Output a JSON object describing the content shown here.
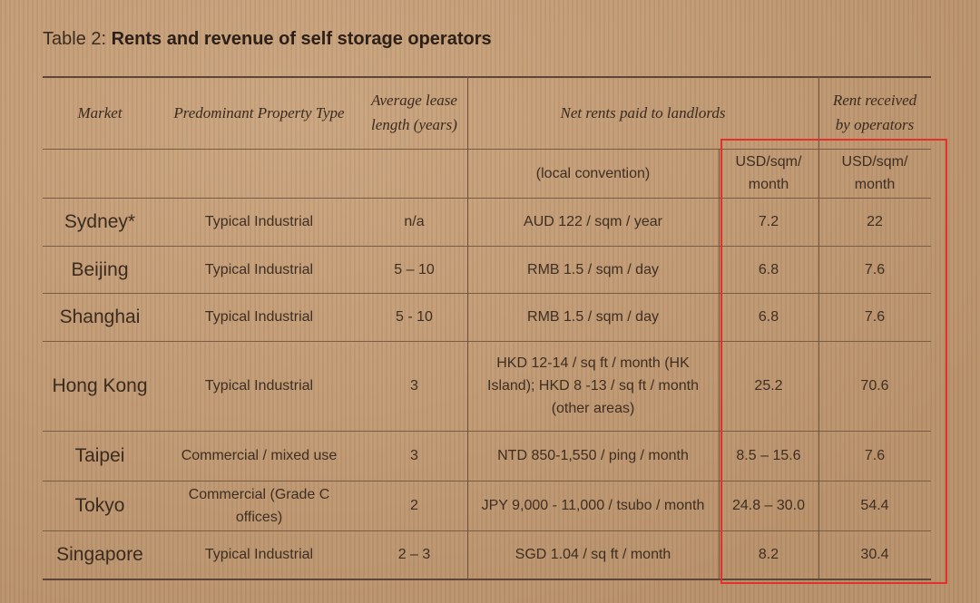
{
  "title": {
    "prefix": "Table 2: ",
    "bold": "Rents and revenue of self storage operators"
  },
  "headers": {
    "market": "Market",
    "property_type": "Predominant Property Type",
    "lease_length": "Average lease length (years)",
    "net_rents": "Net rents paid to landlords",
    "rent_received": "Rent received by operators"
  },
  "subheaders": {
    "local": "(local convention)",
    "usd_net": "USD/sqm/ month",
    "usd_received": "USD/sqm/ month"
  },
  "rows": [
    {
      "market": "Sydney*",
      "type": "Typical Industrial",
      "lease": "n/a",
      "local": "AUD 122 / sqm / year",
      "usd": "7.2",
      "received": "22"
    },
    {
      "market": "Beijing",
      "type": "Typical Industrial",
      "lease": "5 – 10",
      "local": "RMB 1.5 / sqm / day",
      "usd": "6.8",
      "received": "7.6"
    },
    {
      "market": "Shanghai",
      "type": "Typical Industrial",
      "lease": "5 - 10",
      "local": "RMB 1.5 / sqm / day",
      "usd": "6.8",
      "received": "7.6"
    },
    {
      "market": "Hong Kong",
      "type": "Typical Industrial",
      "lease": "3",
      "local": "HKD 12-14 / sq ft / month (HK Island); HKD 8 -13 / sq ft / month (other areas)",
      "usd": "25.2",
      "received": "70.6"
    },
    {
      "market": "Taipei",
      "type": "Commercial / mixed use",
      "lease": "3",
      "local": "NTD 850-1,550 / ping / month",
      "usd": "8.5 – 15.6",
      "received": "7.6"
    },
    {
      "market": "Tokyo",
      "type": "Commercial (Grade C offices)",
      "lease": "2",
      "local": "JPY 9,000 - 11,000 / tsubo / month",
      "usd": "24.8 – 30.0",
      "received": "54.4"
    },
    {
      "market": "Singapore",
      "type": "Typical Industrial",
      "lease": "2 – 3",
      "local": "SGD 1.04 / sq ft / month",
      "usd": "8.2",
      "received": "30.4"
    }
  ],
  "highlight_color": "#e4302a"
}
